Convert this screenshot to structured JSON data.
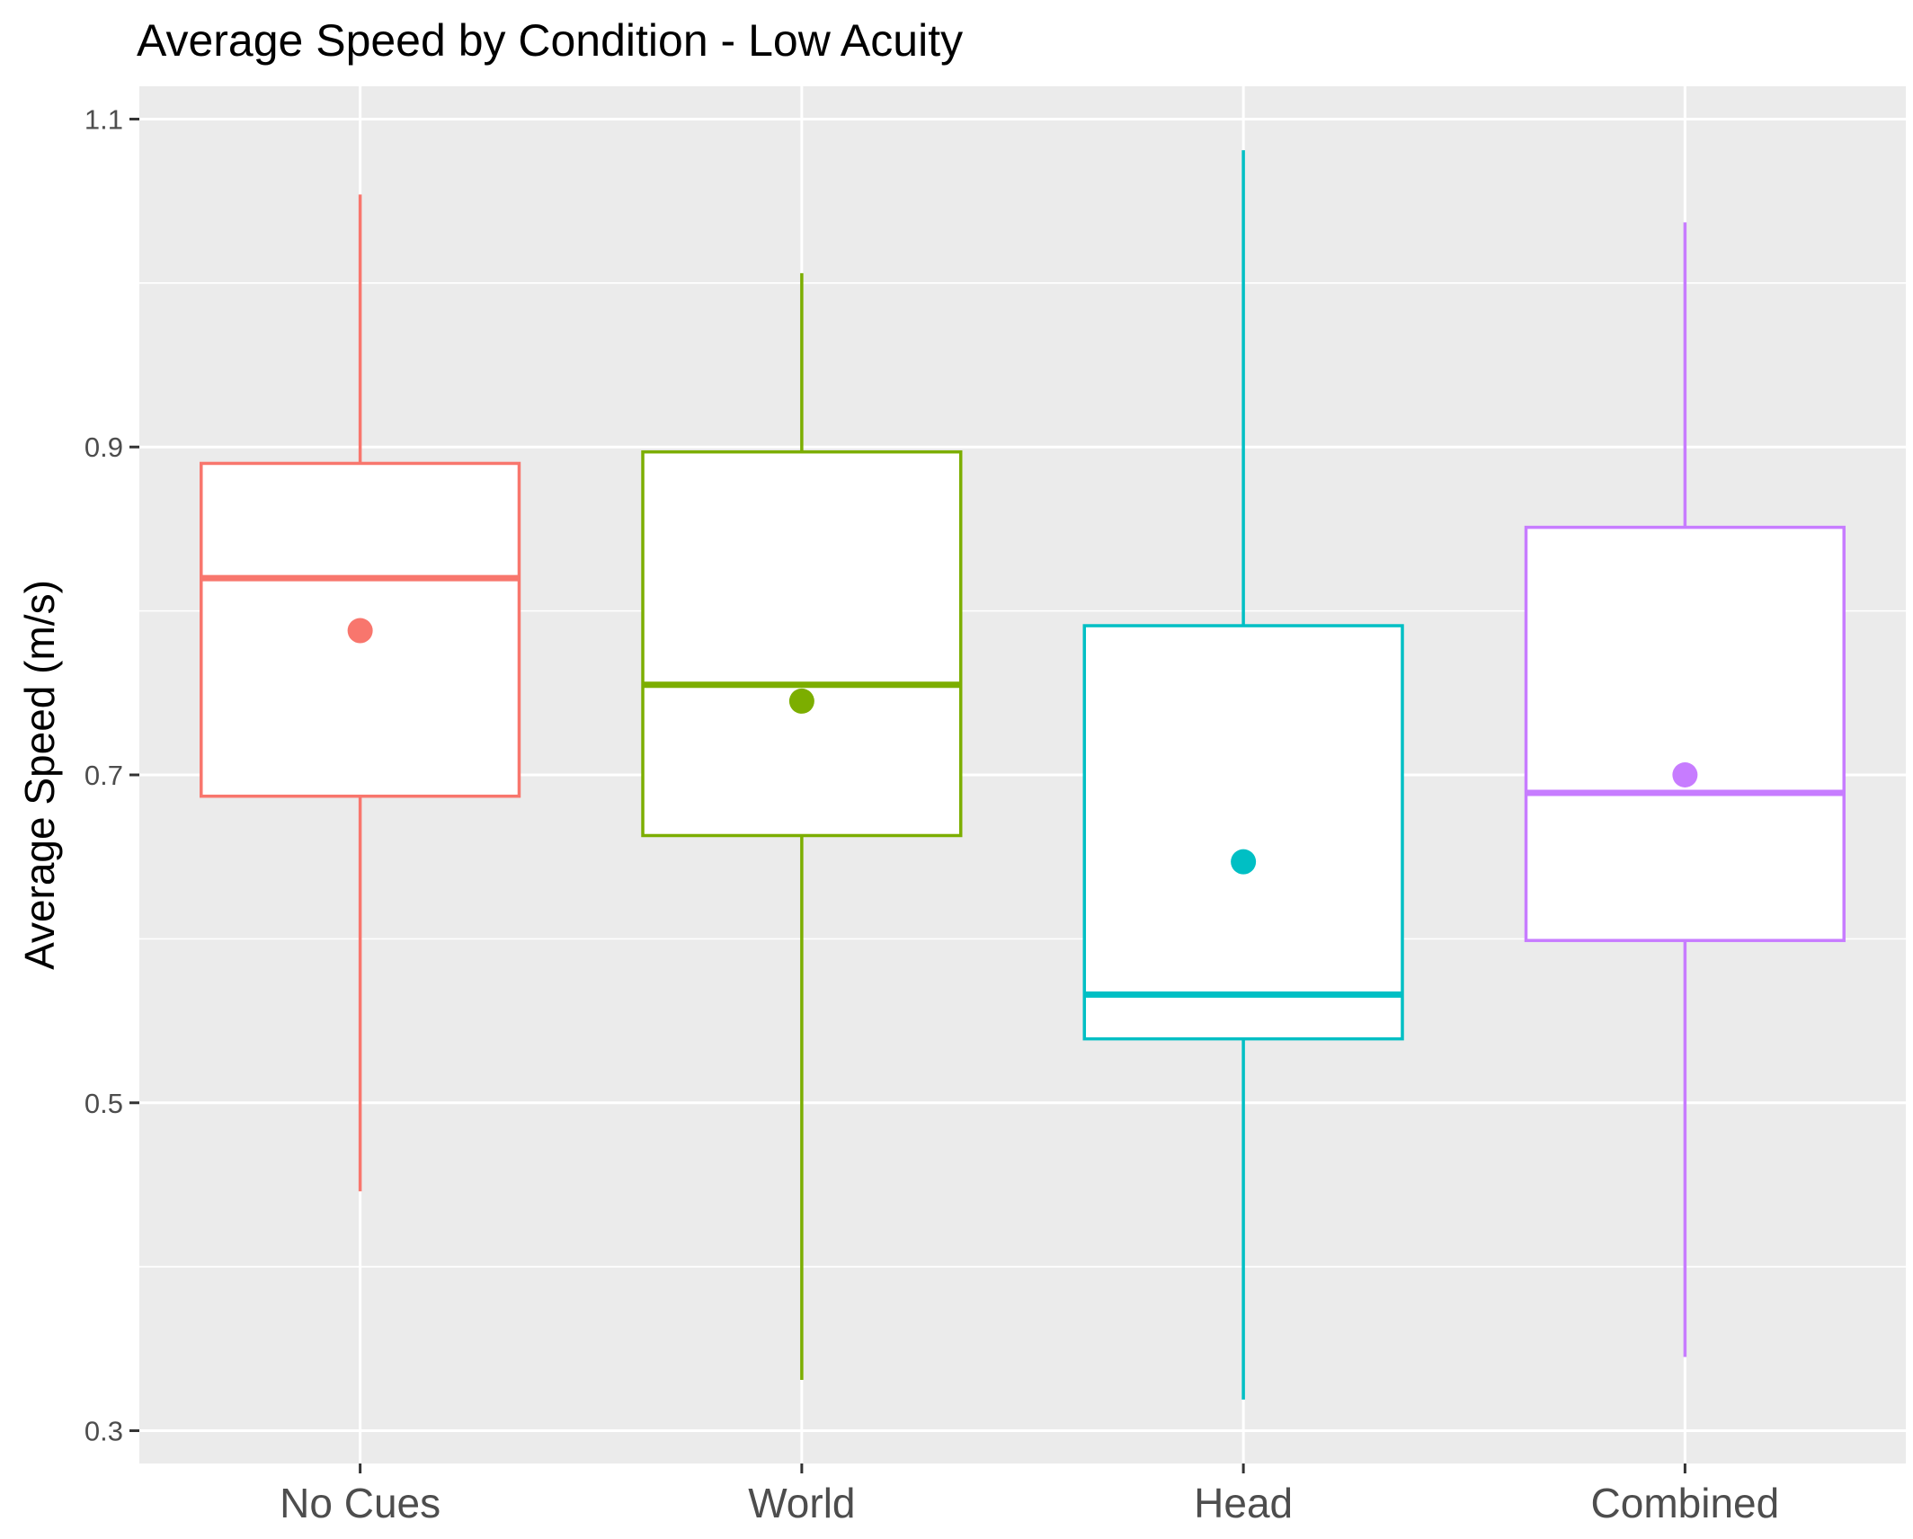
{
  "chart_data": {
    "type": "box",
    "title": "Average Speed by Condition - Low Acuity",
    "xlabel": "",
    "ylabel": "Average Speed (m/s)",
    "ylim": [
      0.28,
      1.12
    ],
    "y_ticks": [
      {
        "value": 0.3,
        "label": "0.3"
      },
      {
        "value": 0.5,
        "label": "0.5"
      },
      {
        "value": 0.7,
        "label": "0.7"
      },
      {
        "value": 0.9,
        "label": "0.9"
      },
      {
        "value": 1.1,
        "label": "1.1"
      }
    ],
    "y_minor_ticks": [
      0.4,
      0.6,
      0.8,
      1.0
    ],
    "grid": true,
    "legend": "none",
    "categories": [
      "No Cues",
      "World",
      "Head",
      "Combined"
    ],
    "series": [
      {
        "category": "No Cues",
        "color": "#F8766D",
        "whisker_low": 0.446,
        "q1": 0.687,
        "median": 0.82,
        "q3": 0.89,
        "whisker_high": 1.054,
        "mean": 0.788
      },
      {
        "category": "World",
        "color": "#7CAE00",
        "whisker_low": 0.331,
        "q1": 0.663,
        "median": 0.755,
        "q3": 0.897,
        "whisker_high": 1.006,
        "mean": 0.745
      },
      {
        "category": "Head",
        "color": "#00BFC4",
        "whisker_low": 0.319,
        "q1": 0.539,
        "median": 0.566,
        "q3": 0.791,
        "whisker_high": 1.081,
        "mean": 0.647
      },
      {
        "category": "Combined",
        "color": "#C77CFF",
        "whisker_low": 0.345,
        "q1": 0.599,
        "median": 0.689,
        "q3": 0.851,
        "whisker_high": 1.037,
        "mean": 0.7
      }
    ]
  }
}
